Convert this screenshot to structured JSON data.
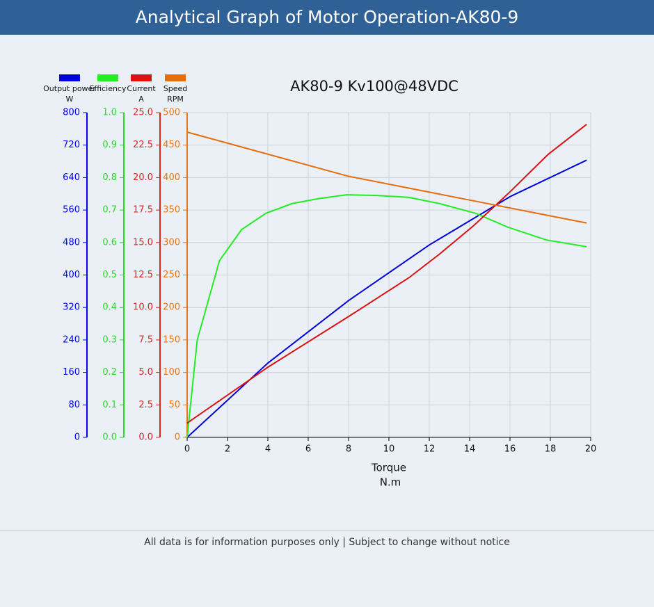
{
  "header": {
    "title": "Analytical Graph of Motor Operation-AK80-9"
  },
  "chart_data": {
    "type": "line",
    "title": "AK80-9 Kv100@48VDC",
    "x_label": "Torque",
    "x_unit": "N.m",
    "xlim": [
      0,
      20
    ],
    "xticks": [
      0,
      2,
      4,
      6,
      8,
      10,
      12,
      14,
      16,
      18,
      20
    ],
    "grid": true,
    "y_axes": [
      {
        "ylim": [
          0,
          800
        ],
        "yticks": [
          0,
          80,
          160,
          240,
          320,
          400,
          480,
          560,
          640,
          720,
          800
        ],
        "color": "#0000ee"
      },
      {
        "ylim": [
          0,
          1
        ],
        "yticks": [
          {
            "value": 0,
            "label": "0.0"
          },
          0.1,
          0.2,
          0.3,
          0.4,
          0.5,
          0.6,
          0.7,
          0.8,
          0.9,
          {
            "value": 1,
            "label": "1.0"
          }
        ],
        "color": "#22dd22"
      },
      {
        "ylim": [
          0,
          25
        ],
        "yticks": [
          {
            "value": 0,
            "label": "0.0"
          },
          2.5,
          {
            "value": 5,
            "label": "5.0"
          },
          7.5,
          {
            "value": 10,
            "label": "10.0"
          },
          12.5,
          {
            "value": 15,
            "label": "15.0"
          },
          17.5,
          {
            "value": 20,
            "label": "20.0"
          },
          22.5,
          {
            "value": 25,
            "label": "25.0"
          }
        ],
        "color": "#dd2222"
      },
      {
        "ylim": [
          0,
          500
        ],
        "yticks": [
          0,
          50,
          100,
          150,
          200,
          250,
          300,
          350,
          400,
          450,
          500
        ],
        "color": "#e87511"
      }
    ],
    "series": [
      {
        "name": "Output power",
        "unit": "W",
        "color": "#0000dd",
        "axis": 0,
        "x": [
          0,
          4,
          8,
          12,
          16,
          19.8
        ],
        "values": [
          0,
          183,
          337,
          474,
          593,
          683
        ]
      },
      {
        "name": "Efficiency",
        "color": "#22ee22",
        "axis": 1,
        "x": [
          0,
          0.5,
          1.6,
          2.7,
          3.9,
          5.2,
          6.5,
          7.9,
          9.4,
          11,
          12.5,
          14.3,
          15.9,
          17.8,
          19.8
        ],
        "values": [
          0,
          0.3,
          0.544,
          0.64,
          0.69,
          0.72,
          0.735,
          0.747,
          0.745,
          0.739,
          0.72,
          0.69,
          0.647,
          0.608,
          0.587
        ]
      },
      {
        "name": "Current",
        "unit": "A",
        "color": "#dd1111",
        "axis": 2,
        "x": [
          0,
          4,
          8,
          11,
          12.5,
          14.2,
          16,
          17.9,
          19.8
        ],
        "values": [
          1.1,
          5.4,
          9.3,
          12.3,
          14.1,
          16.3,
          18.9,
          21.8,
          24.1
        ]
      },
      {
        "name": "Speed",
        "unit": "RPM",
        "color": "#e86d0c",
        "axis": 3,
        "x": [
          0,
          8,
          19.8
        ],
        "values": [
          470,
          402,
          330
        ]
      }
    ]
  },
  "footer": {
    "note": "All data is for information purposes only | Subject to change without notice"
  }
}
